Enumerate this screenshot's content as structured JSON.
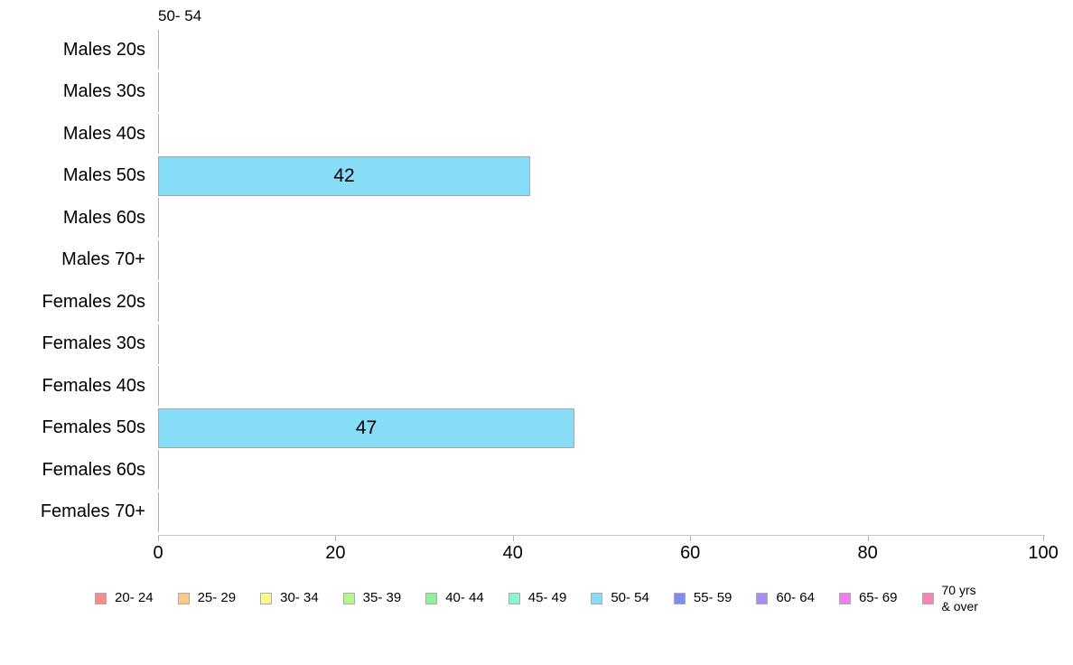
{
  "chart_data": {
    "type": "bar",
    "orientation": "horizontal",
    "title": "50- 54",
    "categories": [
      "Males 20s",
      "Males 30s",
      "Males 40s",
      "Males 50s",
      "Males 60s",
      "Males 70+",
      "Females 20s",
      "Females 30s",
      "Females 40s",
      "Females 50s",
      "Females 60s",
      "Females 70+"
    ],
    "series": [
      {
        "name": "50- 54",
        "color": "#87dcf8",
        "border_color": "#a6a6a6",
        "values": [
          0,
          0,
          0,
          42,
          0,
          0,
          0,
          0,
          0,
          47,
          0,
          0
        ]
      }
    ],
    "bar_value_labels": [
      "",
      "",
      "",
      "42",
      "",
      "",
      "",
      "",
      "",
      "47",
      "",
      ""
    ],
    "xlim": [
      0,
      100
    ],
    "x_ticks": [
      0,
      20,
      40,
      60,
      80,
      100
    ],
    "x_tick_labels": [
      "0",
      "20",
      "40",
      "60",
      "80",
      "100"
    ],
    "grid": false,
    "legend_position": "bottom",
    "legend": [
      {
        "label": "20- 24",
        "color": "#f98b8b"
      },
      {
        "label": "25- 29",
        "color": "#f9c98c"
      },
      {
        "label": "30- 34",
        "color": "#f9f98c"
      },
      {
        "label": "35- 39",
        "color": "#b5f68c"
      },
      {
        "label": "40- 44",
        "color": "#8df295"
      },
      {
        "label": "45- 49",
        "color": "#8df5cd"
      },
      {
        "label": "50- 54",
        "color": "#87dcf8"
      },
      {
        "label": "55- 59",
        "color": "#7f8df0"
      },
      {
        "label": "60- 64",
        "color": "#a88cf2"
      },
      {
        "label": "65- 69",
        "color": "#f07fec"
      },
      {
        "label": "70 yrs\n& over",
        "color": "#f983b7"
      }
    ]
  }
}
